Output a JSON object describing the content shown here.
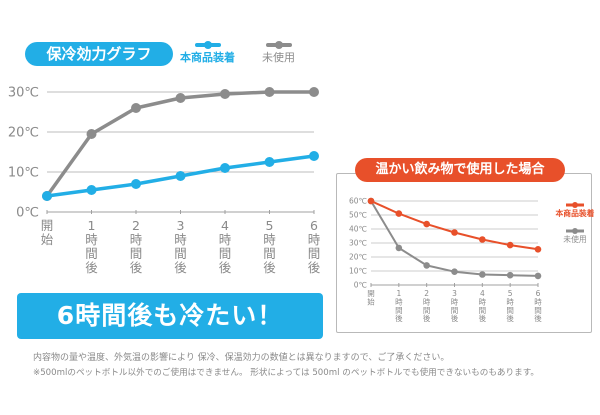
{
  "cold": {
    "title": "保冷効力グラフ",
    "legend": [
      {
        "label": "本商品装着",
        "color": "#22aee6"
      },
      {
        "label": "未使用",
        "color": "#8c8c8c"
      }
    ],
    "banner": "6時間後も冷たい！"
  },
  "hot": {
    "title": "温かい飲み物で使用した場合",
    "legend": [
      {
        "label": "本商品装着",
        "color": "#e8502a"
      },
      {
        "label": "未使用",
        "color": "#8c8c8c"
      }
    ]
  },
  "notes": [
    "内容物の量や温度、外気温の影響により 保冷、保温効力の数値とは異なりますので、ご了承ください。",
    "※500mlのペットボトル以外でのご使用はできません。 形状によっては 500ml のペットボトルでも使用できないものもあります。"
  ],
  "chart_data": [
    {
      "type": "line",
      "title": "保冷効力グラフ",
      "categories": [
        "開始",
        "1時間後",
        "2時間後",
        "3時間後",
        "4時間後",
        "5時間後",
        "6時間後"
      ],
      "tick_labels": [
        "開\n始",
        "1\n時\n間\n後",
        "2\n時\n間\n後",
        "3\n時\n間\n後",
        "4\n時\n間\n後",
        "5\n時\n間\n後",
        "6\n時\n間\n後"
      ],
      "yticks": [
        "0℃",
        "10℃",
        "20℃",
        "30℃"
      ],
      "ylim": [
        0,
        30
      ],
      "grid": true,
      "series": [
        {
          "name": "本商品装着",
          "color": "#22aee6",
          "values": [
            4,
            5.5,
            7,
            9,
            11,
            12.5,
            14
          ]
        },
        {
          "name": "未使用",
          "color": "#8c8c8c",
          "values": [
            4,
            19.5,
            26,
            28.5,
            29.5,
            30,
            30
          ]
        }
      ]
    },
    {
      "type": "line",
      "title": "温かい飲み物で使用した場合",
      "categories": [
        "開始",
        "1時間後",
        "2時間後",
        "3時間後",
        "4時間後",
        "5時間後",
        "6時間後"
      ],
      "tick_labels": [
        "開\n始",
        "1\n時\n間\n後",
        "2\n時\n間\n後",
        "3\n時\n間\n後",
        "4\n時\n間\n後",
        "5\n時\n間\n後",
        "6\n時\n間\n後"
      ],
      "yticks": [
        "0℃",
        "10℃",
        "20℃",
        "30℃",
        "40℃",
        "50℃",
        "60℃"
      ],
      "ylim": [
        0,
        60
      ],
      "grid": true,
      "legend_position": "right",
      "series": [
        {
          "name": "本商品装着",
          "color": "#e8502a",
          "values": [
            60,
            51,
            43.5,
            37.5,
            32.5,
            28.5,
            25.5
          ]
        },
        {
          "name": "未使用",
          "color": "#8c8c8c",
          "values": [
            60,
            26.5,
            14,
            9.5,
            7.5,
            7,
            6.5
          ]
        }
      ]
    }
  ]
}
